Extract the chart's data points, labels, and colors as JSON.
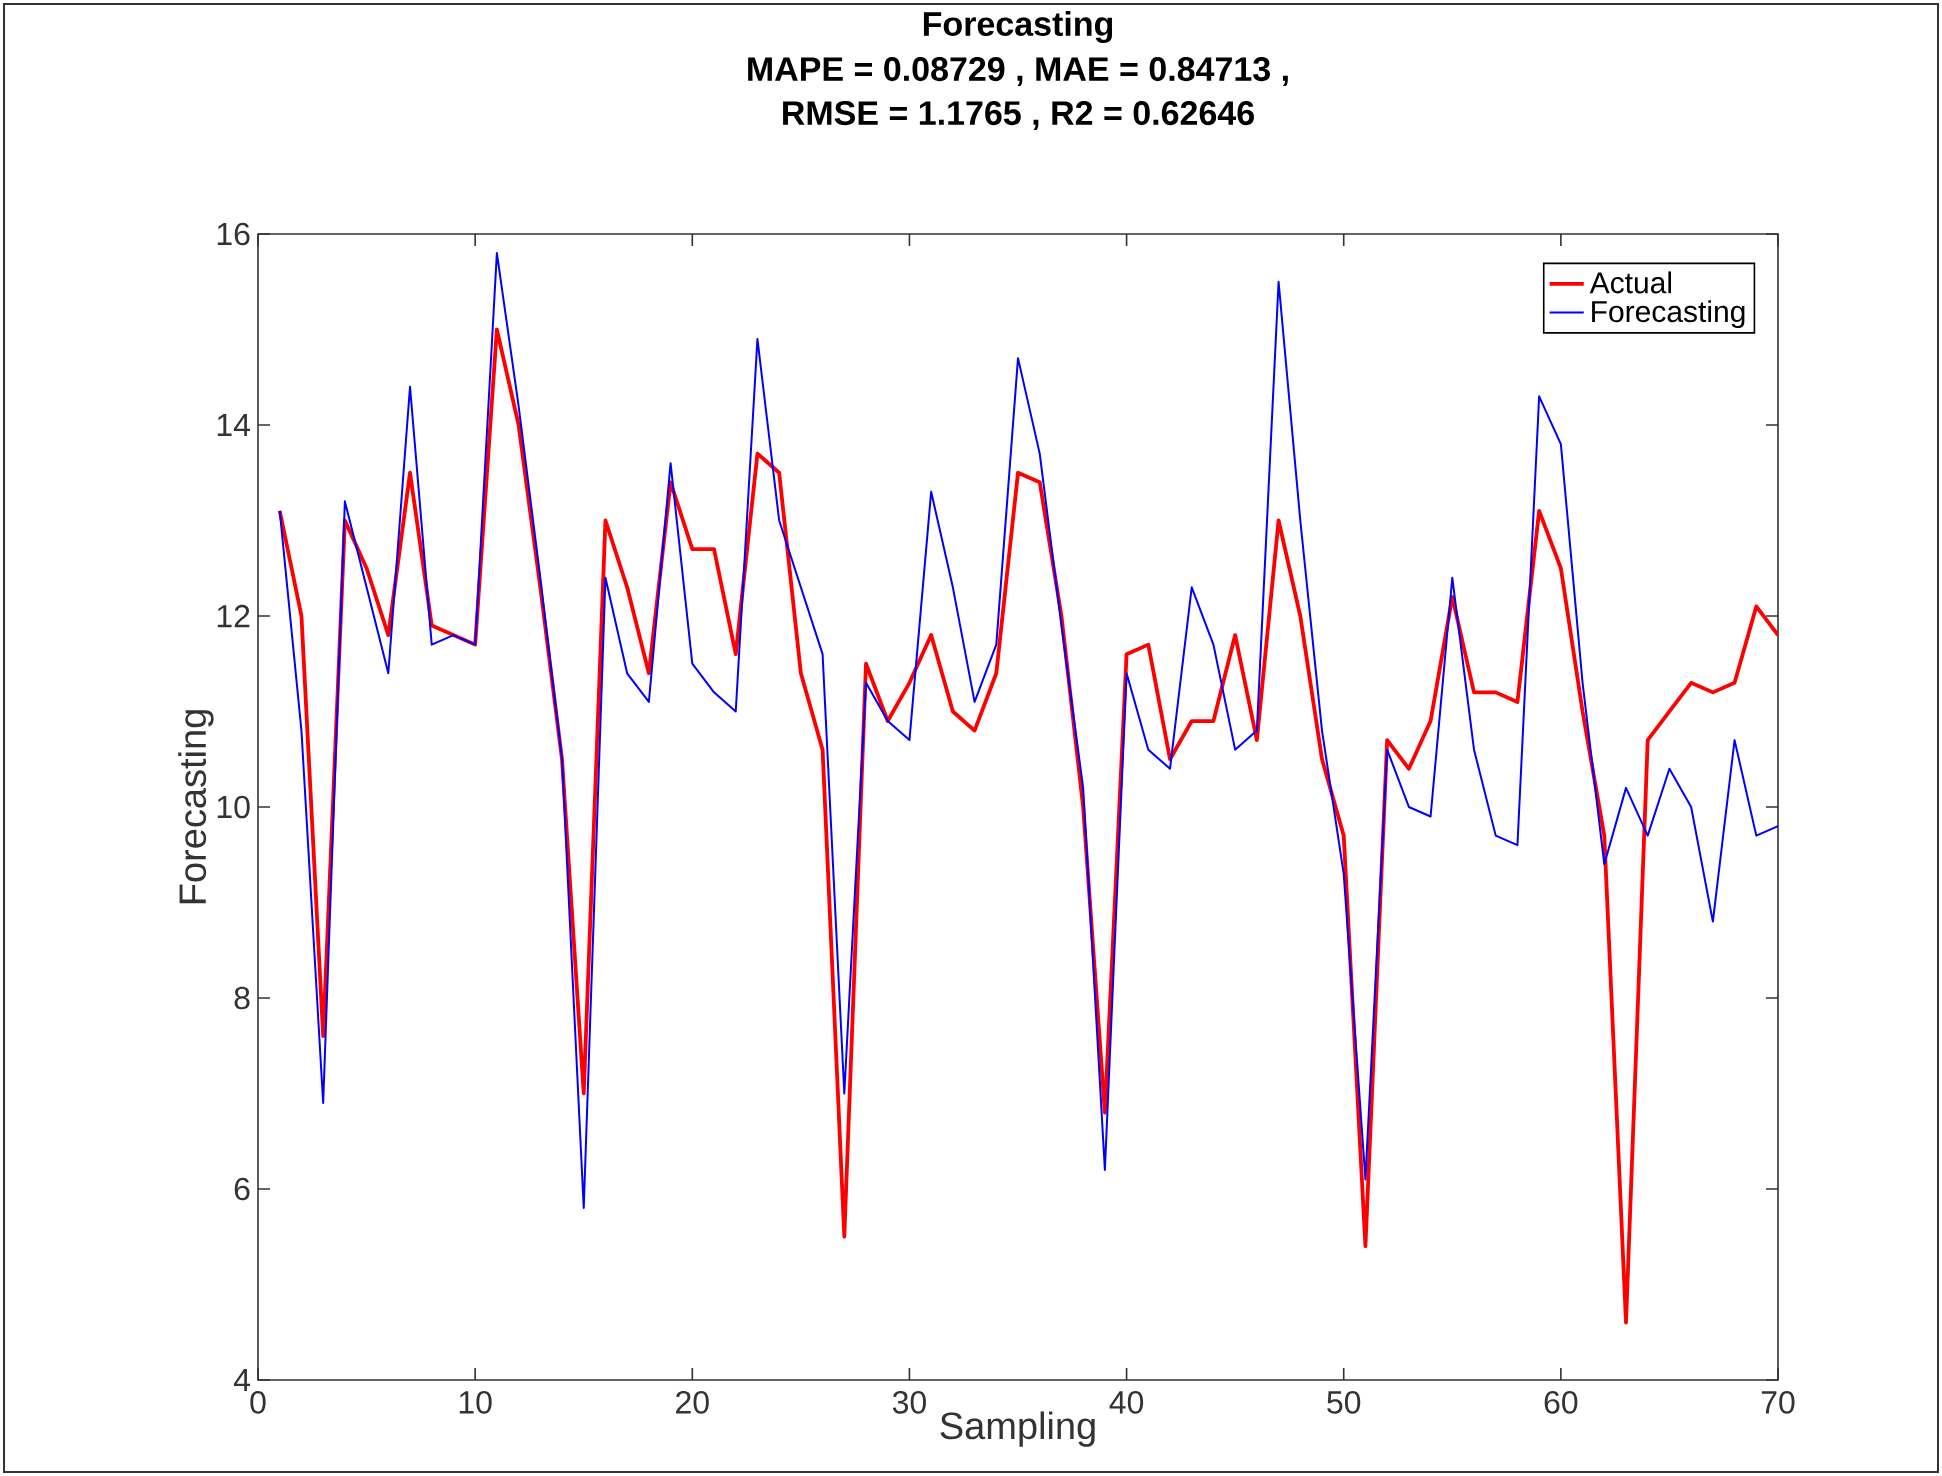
{
  "chart_data": {
    "type": "line",
    "title": "Forecasting",
    "subtitle": "MAPE = 0.08729 , MAE = 0.84713 , RMSE = 1.1765 , R2 = 0.62646",
    "xlabel": "Sampling",
    "ylabel": "Forecasting",
    "x": [
      1,
      2,
      3,
      4,
      5,
      6,
      7,
      8,
      9,
      10,
      11,
      12,
      13,
      14,
      15,
      16,
      17,
      18,
      19,
      20,
      21,
      22,
      23,
      24,
      25,
      26,
      27,
      28,
      29,
      30,
      31,
      32,
      33,
      34,
      35,
      36,
      37,
      38,
      39,
      40,
      41,
      42,
      43,
      44,
      45,
      46,
      47,
      48,
      49,
      50,
      51,
      52,
      53,
      54,
      55,
      56,
      57,
      58,
      59,
      60,
      61,
      62,
      63,
      64,
      65,
      66,
      67,
      68,
      69,
      70
    ],
    "series": [
      {
        "name": "Actual",
        "color": "#ff0000",
        "values": [
          13.1,
          12.0,
          7.6,
          13.0,
          12.5,
          11.8,
          13.5,
          11.9,
          11.8,
          11.7,
          15.0,
          14.0,
          12.3,
          10.5,
          7.0,
          13.0,
          12.3,
          11.4,
          13.4,
          12.7,
          12.7,
          11.6,
          13.7,
          13.5,
          11.4,
          10.6,
          5.5,
          11.5,
          10.9,
          11.3,
          11.8,
          11.0,
          10.8,
          11.4,
          13.5,
          13.4,
          12.0,
          10.0,
          6.8,
          11.6,
          11.7,
          10.5,
          10.9,
          10.9,
          11.8,
          10.7,
          13.0,
          12.0,
          10.5,
          9.7,
          5.4,
          10.7,
          10.4,
          10.9,
          12.2,
          11.2,
          11.2,
          11.1,
          13.1,
          12.5,
          11.0,
          9.7,
          4.6,
          10.7,
          11.0,
          11.3,
          11.2,
          11.3,
          12.1,
          11.8
        ]
      },
      {
        "name": "Forecasting",
        "color": "#0000ff",
        "values": [
          13.1,
          10.8,
          6.9,
          13.2,
          12.3,
          11.4,
          14.4,
          11.7,
          11.8,
          11.7,
          15.8,
          14.2,
          12.4,
          10.5,
          5.8,
          12.4,
          11.4,
          11.1,
          13.6,
          11.5,
          11.2,
          11.0,
          14.9,
          13.0,
          12.3,
          11.6,
          7.0,
          11.3,
          10.9,
          10.7,
          13.3,
          12.3,
          11.1,
          11.7,
          14.7,
          13.7,
          11.9,
          10.2,
          6.2,
          11.4,
          10.6,
          10.4,
          12.3,
          11.7,
          10.6,
          10.8,
          15.5,
          13.0,
          10.8,
          9.3,
          6.1,
          10.6,
          10.0,
          9.9,
          12.4,
          10.6,
          9.7,
          9.6,
          14.3,
          13.8,
          11.3,
          9.4,
          10.2,
          9.7,
          10.4,
          10.0,
          8.8,
          10.7,
          9.7,
          9.8
        ]
      }
    ],
    "xlim": [
      0,
      70
    ],
    "ylim": [
      4,
      16
    ],
    "xticks": [
      0,
      10,
      20,
      30,
      40,
      50,
      60,
      70
    ],
    "yticks": [
      4,
      6,
      8,
      10,
      12,
      14,
      16
    ],
    "grid": false,
    "legend": "top right",
    "marker": "none",
    "line_style": "solid"
  }
}
